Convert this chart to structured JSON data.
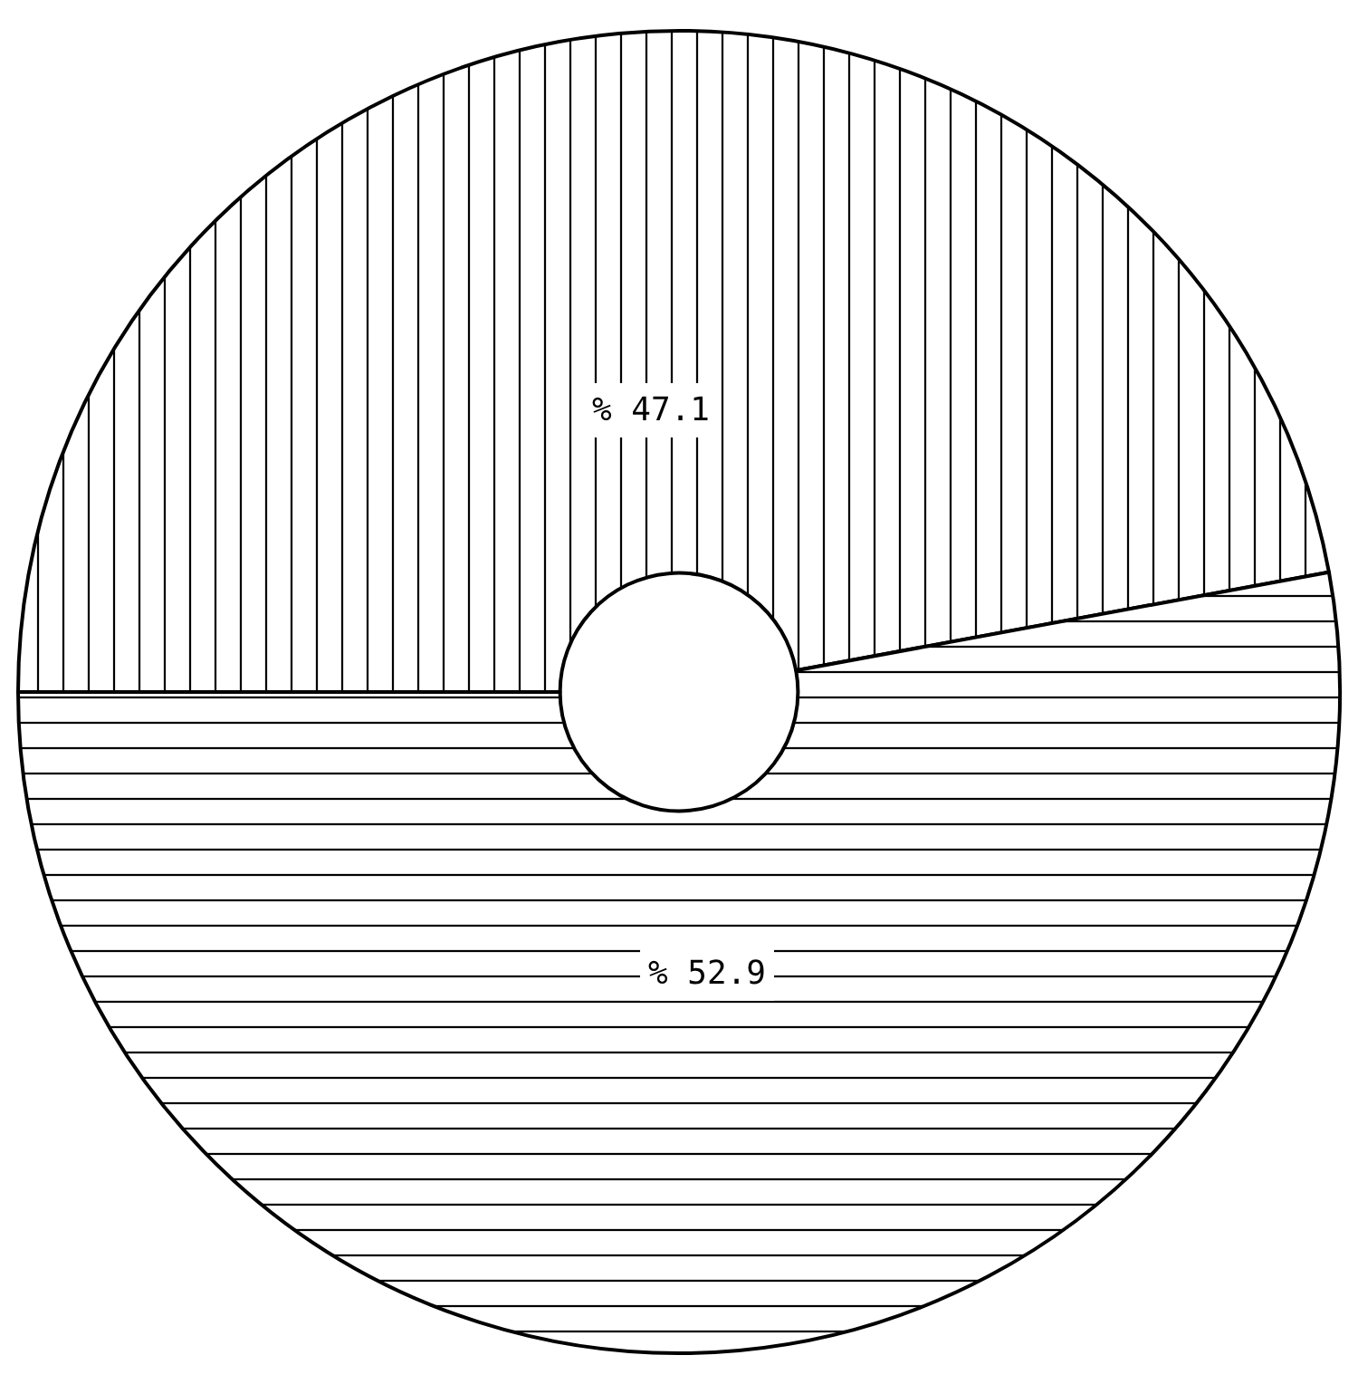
{
  "chart_data": {
    "type": "donut",
    "categories": [
      null,
      null
    ],
    "values": [
      47.1,
      52.9
    ],
    "value_labels": [
      "% 47.1",
      "% 52.9"
    ]
  }
}
